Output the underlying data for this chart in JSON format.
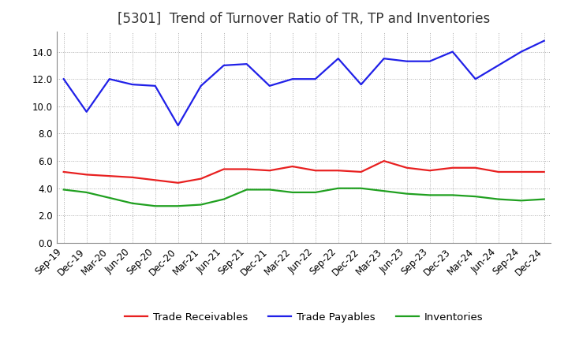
{
  "title": "[5301]  Trend of Turnover Ratio of TR, TP and Inventories",
  "labels": [
    "Sep-19",
    "Dec-19",
    "Mar-20",
    "Jun-20",
    "Sep-20",
    "Dec-20",
    "Mar-21",
    "Jun-21",
    "Sep-21",
    "Dec-21",
    "Mar-22",
    "Jun-22",
    "Sep-22",
    "Dec-22",
    "Mar-23",
    "Jun-23",
    "Sep-23",
    "Dec-23",
    "Mar-24",
    "Jun-24",
    "Sep-24",
    "Dec-24"
  ],
  "trade_receivables": [
    5.2,
    5.0,
    4.9,
    4.8,
    4.6,
    4.4,
    4.7,
    5.4,
    5.4,
    5.3,
    5.6,
    5.3,
    5.3,
    5.2,
    6.0,
    5.5,
    5.3,
    5.5,
    5.5,
    5.2,
    5.2,
    5.2
  ],
  "trade_payables": [
    12.0,
    9.6,
    12.0,
    11.6,
    11.5,
    8.6,
    11.5,
    13.0,
    13.1,
    11.5,
    12.0,
    12.0,
    13.5,
    11.6,
    13.5,
    13.3,
    13.3,
    14.0,
    12.0,
    13.0,
    14.0,
    14.8
  ],
  "inventories": [
    3.9,
    3.7,
    3.3,
    2.9,
    2.7,
    2.7,
    2.8,
    3.2,
    3.9,
    3.9,
    3.7,
    3.7,
    4.0,
    4.0,
    3.8,
    3.6,
    3.5,
    3.5,
    3.4,
    3.2,
    3.1,
    3.2
  ],
  "ylim": [
    0.0,
    15.5
  ],
  "yticks": [
    0.0,
    2.0,
    4.0,
    6.0,
    8.0,
    10.0,
    12.0,
    14.0
  ],
  "line_color_tr": "#e82020",
  "line_color_tp": "#2020e8",
  "line_color_inv": "#20a020",
  "legend_labels": [
    "Trade Receivables",
    "Trade Payables",
    "Inventories"
  ],
  "background_color": "#ffffff",
  "grid_color": "#aaaaaa",
  "title_fontsize": 12,
  "tick_fontsize": 8.5,
  "legend_fontsize": 9.5
}
